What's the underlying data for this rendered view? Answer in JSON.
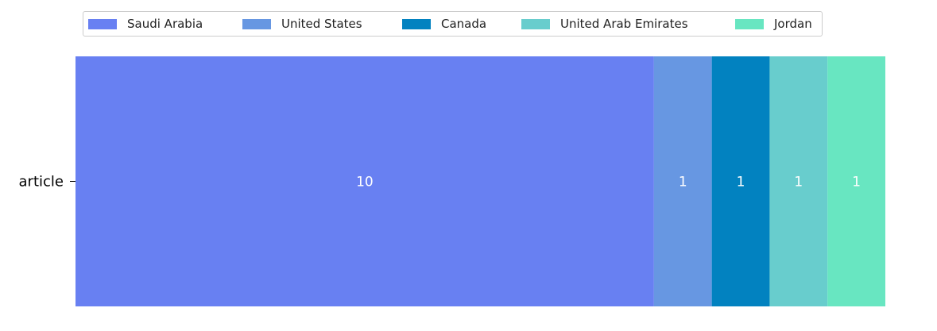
{
  "chart_data": {
    "type": "bar",
    "orientation": "horizontal",
    "stacked": true,
    "categories": [
      "article"
    ],
    "series": [
      {
        "name": "Saudi Arabia",
        "values": [
          10
        ],
        "color": "#6880f2"
      },
      {
        "name": "United States",
        "values": [
          1
        ],
        "color": "#6797e2"
      },
      {
        "name": "Canada",
        "values": [
          1
        ],
        "color": "#0282c0"
      },
      {
        "name": "United Arab Emirates",
        "values": [
          1
        ],
        "color": "#68cdcd"
      },
      {
        "name": "Jordan",
        "values": [
          1
        ],
        "color": "#68e6c1"
      }
    ],
    "xlim": [
      0,
      14
    ],
    "legend_position": "top",
    "data_label_color": "#ffffff",
    "grid": false
  }
}
